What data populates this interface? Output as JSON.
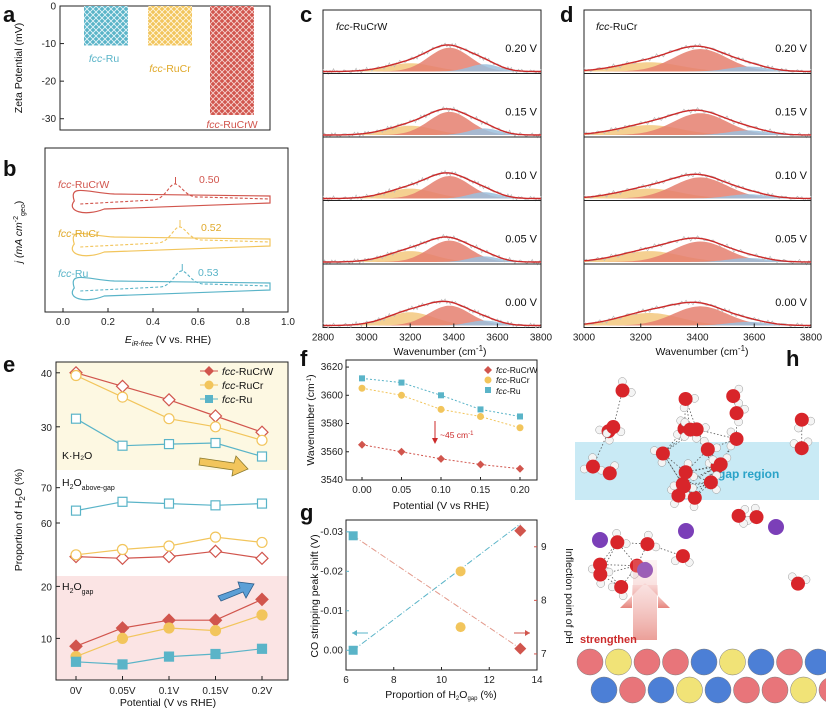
{
  "panel_letters": [
    "a",
    "b",
    "c",
    "d",
    "e",
    "f",
    "g",
    "h"
  ],
  "colors": {
    "ru": "#5ab4c8",
    "rucr": "#f2c55c",
    "rucrw": "#d1554d",
    "spec_red": "#cc2a2a",
    "spec_orange": "#f3c87e",
    "spec_salmon": "#e57f6f",
    "spec_blue": "#9bbfdd",
    "gap_band": "#bfe6f3",
    "above_band": "#fdf8e2",
    "gap_band_e": "#fbe4e4",
    "purple": "#7b3fb8"
  },
  "chart_data": [
    {
      "panel": "a",
      "type": "bar",
      "ylabel": "Zeta Potential (mV)",
      "ylim": [
        -33,
        0
      ],
      "yticks": [
        0,
        -10,
        -20,
        -30
      ],
      "categories": [
        "fcc-Ru",
        "fcc-RuCr",
        "fcc-RuCrW"
      ],
      "values": [
        -10.5,
        -10.5,
        -29
      ],
      "labels": [
        {
          "pre": "fcc",
          "post": "-Ru"
        },
        {
          "pre": "fcc",
          "post": "-RuCr"
        },
        {
          "pre": "fcc",
          "post": "-RuCrW"
        }
      ]
    },
    {
      "panel": "b",
      "type": "line",
      "xlabel_main": "E",
      "xlabel_sub": "iR-free",
      "xlabel_rest": " (V vs. RHE)",
      "ylabel_main": "j (mA cm",
      "ylabel_sup": "-2",
      "ylabel_sub": "geo",
      "ylabel_end": ")",
      "xlim": [
        0.0,
        1.0
      ],
      "xticks": [
        "0.0",
        "0.2",
        "0.4",
        "0.6",
        "0.8",
        "1.0"
      ],
      "series": [
        {
          "name": "fcc-RuCrW",
          "label_pre": "fcc",
          "label_post": "-RuCrW",
          "peak": "0.50",
          "peak_v": 0.5
        },
        {
          "name": "fcc-RuCr",
          "label_pre": "fcc",
          "label_post": "-RuCr",
          "peak": "0.52",
          "peak_v": 0.52
        },
        {
          "name": "fcc-Ru",
          "label_pre": "fcc",
          "label_post": "-Ru",
          "peak": "0.53",
          "peak_v": 0.53
        }
      ]
    },
    {
      "panel": "c",
      "type": "area",
      "title_pre": "fcc",
      "title_post": "-RuCrW",
      "xlabel": "Wavenumber (cm",
      "xlabel_sup": "-1",
      "xlabel_end": ")",
      "xlim": [
        2800,
        3800
      ],
      "xticks": [
        "2800",
        "3000",
        "3200",
        "3400",
        "3600",
        "3800"
      ],
      "potentials": [
        "0.20 V",
        "0.15 V",
        "0.10 V",
        "0.05 V",
        "0.00 V"
      ],
      "components": [
        {
          "name": "H2O K-H2O",
          "center": 3200,
          "amps": [
            0.25,
            0.28,
            0.3,
            0.33,
            0.4
          ]
        },
        {
          "name": "H2O above-gap",
          "center": 3380,
          "amps": [
            0.72,
            0.7,
            0.68,
            0.65,
            0.6
          ]
        },
        {
          "name": "H2O gap",
          "center": 3540,
          "amps": [
            0.22,
            0.2,
            0.19,
            0.17,
            0.15
          ]
        }
      ]
    },
    {
      "panel": "d",
      "type": "area",
      "title_pre": "fcc",
      "title_post": "-RuCr",
      "xlabel": "Wavenumber (cm",
      "xlabel_sup": "-1",
      "xlabel_end": ")",
      "xlim": [
        3000,
        3800
      ],
      "xticks": [
        "3000",
        "3200",
        "3400",
        "3600",
        "3800"
      ],
      "potentials": [
        "0.20 V",
        "0.15 V",
        "0.10 V",
        "0.05 V",
        "0.00 V"
      ],
      "components": [
        {
          "name": "H2O K-H2O",
          "center": 3230,
          "amps": [
            0.28,
            0.3,
            0.3,
            0.33,
            0.38
          ]
        },
        {
          "name": "H2O above-gap",
          "center": 3410,
          "amps": [
            0.68,
            0.66,
            0.64,
            0.62,
            0.58
          ]
        },
        {
          "name": "H2O gap",
          "center": 3580,
          "amps": [
            0.15,
            0.14,
            0.13,
            0.12,
            0.11
          ]
        }
      ]
    },
    {
      "panel": "e",
      "type": "line",
      "xlabel": "Potential (V vs RHE)",
      "ylabel_pre": "Proportion of H",
      "ylabel_sub": "2",
      "ylabel_post": "O (%)",
      "categories": [
        "0V",
        "0.05V",
        "0.1V",
        "0.15V",
        "0.2V"
      ],
      "yticks_top": [
        "30",
        "40"
      ],
      "yticks_mid": [
        "60",
        "70"
      ],
      "yticks_bot": [
        "10",
        "20"
      ],
      "legend": [
        {
          "pre": "fcc",
          "post": "-RuCrW"
        },
        {
          "pre": "fcc",
          "post": "-RuCr"
        },
        {
          "pre": "fcc",
          "post": "-Ru"
        }
      ],
      "group_labels": {
        "k": "K·H₂O",
        "above_pre": "H",
        "above_sub": "2",
        "above_mid": "O",
        "above_tail": "above-gap",
        "gap_pre": "H",
        "gap_sub": "2",
        "gap_mid": "O",
        "gap_tail": "gap"
      },
      "series_k": [
        {
          "name": "fcc-RuCrW",
          "values": [
            40.0,
            37.5,
            35.0,
            32.0,
            29.0
          ]
        },
        {
          "name": "fcc-RuCr",
          "values": [
            39.5,
            35.5,
            31.5,
            30.0,
            27.5
          ]
        },
        {
          "name": "fcc-Ru",
          "values": [
            31.5,
            26.5,
            26.8,
            27.0,
            24.5
          ]
        }
      ],
      "series_above": [
        {
          "name": "fcc-RuCrW",
          "values": [
            50.5,
            50.0,
            50.5,
            52.0,
            50.0
          ]
        },
        {
          "name": "fcc-RuCr",
          "values": [
            51.0,
            52.5,
            53.5,
            56.0,
            54.5
          ]
        },
        {
          "name": "fcc-Ru",
          "values": [
            63.5,
            66.0,
            65.5,
            65.0,
            65.5
          ]
        }
      ],
      "series_gap": [
        {
          "name": "fcc-RuCrW",
          "values": [
            8.5,
            12.0,
            13.5,
            13.5,
            17.5
          ]
        },
        {
          "name": "fcc-RuCr",
          "values": [
            6.5,
            10.0,
            12.0,
            11.5,
            14.5
          ]
        },
        {
          "name": "fcc-Ru",
          "values": [
            5.5,
            5.0,
            6.5,
            7.0,
            8.0
          ]
        }
      ]
    },
    {
      "panel": "f",
      "type": "scatter",
      "xlabel": "Potential (V vs RHE)",
      "ylabel_pre": "Wavenumber (cm",
      "ylabel_sup": "-1",
      "ylabel_end": ")",
      "x": [
        0.0,
        0.05,
        0.1,
        0.15,
        0.2
      ],
      "xticks": [
        "0.00",
        "0.05",
        "0.10",
        "0.15",
        "0.20"
      ],
      "ylim": [
        3540,
        3625
      ],
      "yticks": [
        "3540",
        "3560",
        "3580",
        "3600",
        "3620"
      ],
      "series": [
        {
          "name": "fcc-RuCrW",
          "label_pre": "fcc",
          "label_post": "-RuCrW",
          "values": [
            3565,
            3560,
            3555,
            3551,
            3548
          ]
        },
        {
          "name": "fcc-RuCr",
          "label_pre": "fcc",
          "label_post": "-RuCr",
          "values": [
            3605,
            3600,
            3590,
            3585,
            3577
          ]
        },
        {
          "name": "fcc-Ru",
          "label_pre": "fcc",
          "label_post": "-Ru",
          "values": [
            3612,
            3609,
            3600,
            3590,
            3585
          ]
        }
      ],
      "annotation": "~45 cm",
      "annotation_sup": "-1"
    },
    {
      "panel": "g",
      "type": "scatter",
      "xlabel_pre": "Proportion of H",
      "xlabel_sub": "2",
      "xlabel_mid": "O",
      "xlabel_sub2": "gap",
      "xlabel_end": " (%)",
      "ylabel_left": "CO stripping peak shift (V)",
      "ylabel_right": "Inflection point of pH",
      "xlim": [
        6,
        14
      ],
      "xticks": [
        "6",
        "8",
        "10",
        "12",
        "14"
      ],
      "ylim_left": [
        0.005,
        -0.033
      ],
      "yticks_left": [
        "-0.03",
        "-0.02",
        "-0.01",
        "0.00"
      ],
      "ylim_right": [
        6.7,
        9.5
      ],
      "yticks_right": [
        "7",
        "8",
        "9"
      ],
      "points": [
        {
          "x": 6.3,
          "shift": -0.029,
          "ph": null,
          "color": "ru"
        },
        {
          "x": 6.3,
          "shift": 0.0,
          "ph": null,
          "color": "ru"
        },
        {
          "x": 10.8,
          "shift": -0.02,
          "ph": null,
          "color": "rucr"
        },
        {
          "x": 10.8,
          "shift": null,
          "ph": 7.5,
          "color": "rucr"
        },
        {
          "x": 13.3,
          "shift": null,
          "ph": 9.3,
          "color": "rucrw"
        },
        {
          "x": 13.3,
          "shift": null,
          "ph": 7.1,
          "color": "rucrw"
        }
      ]
    }
  ],
  "panel_h": {
    "gap_region": "gap region",
    "strengthen": "strengthen"
  }
}
